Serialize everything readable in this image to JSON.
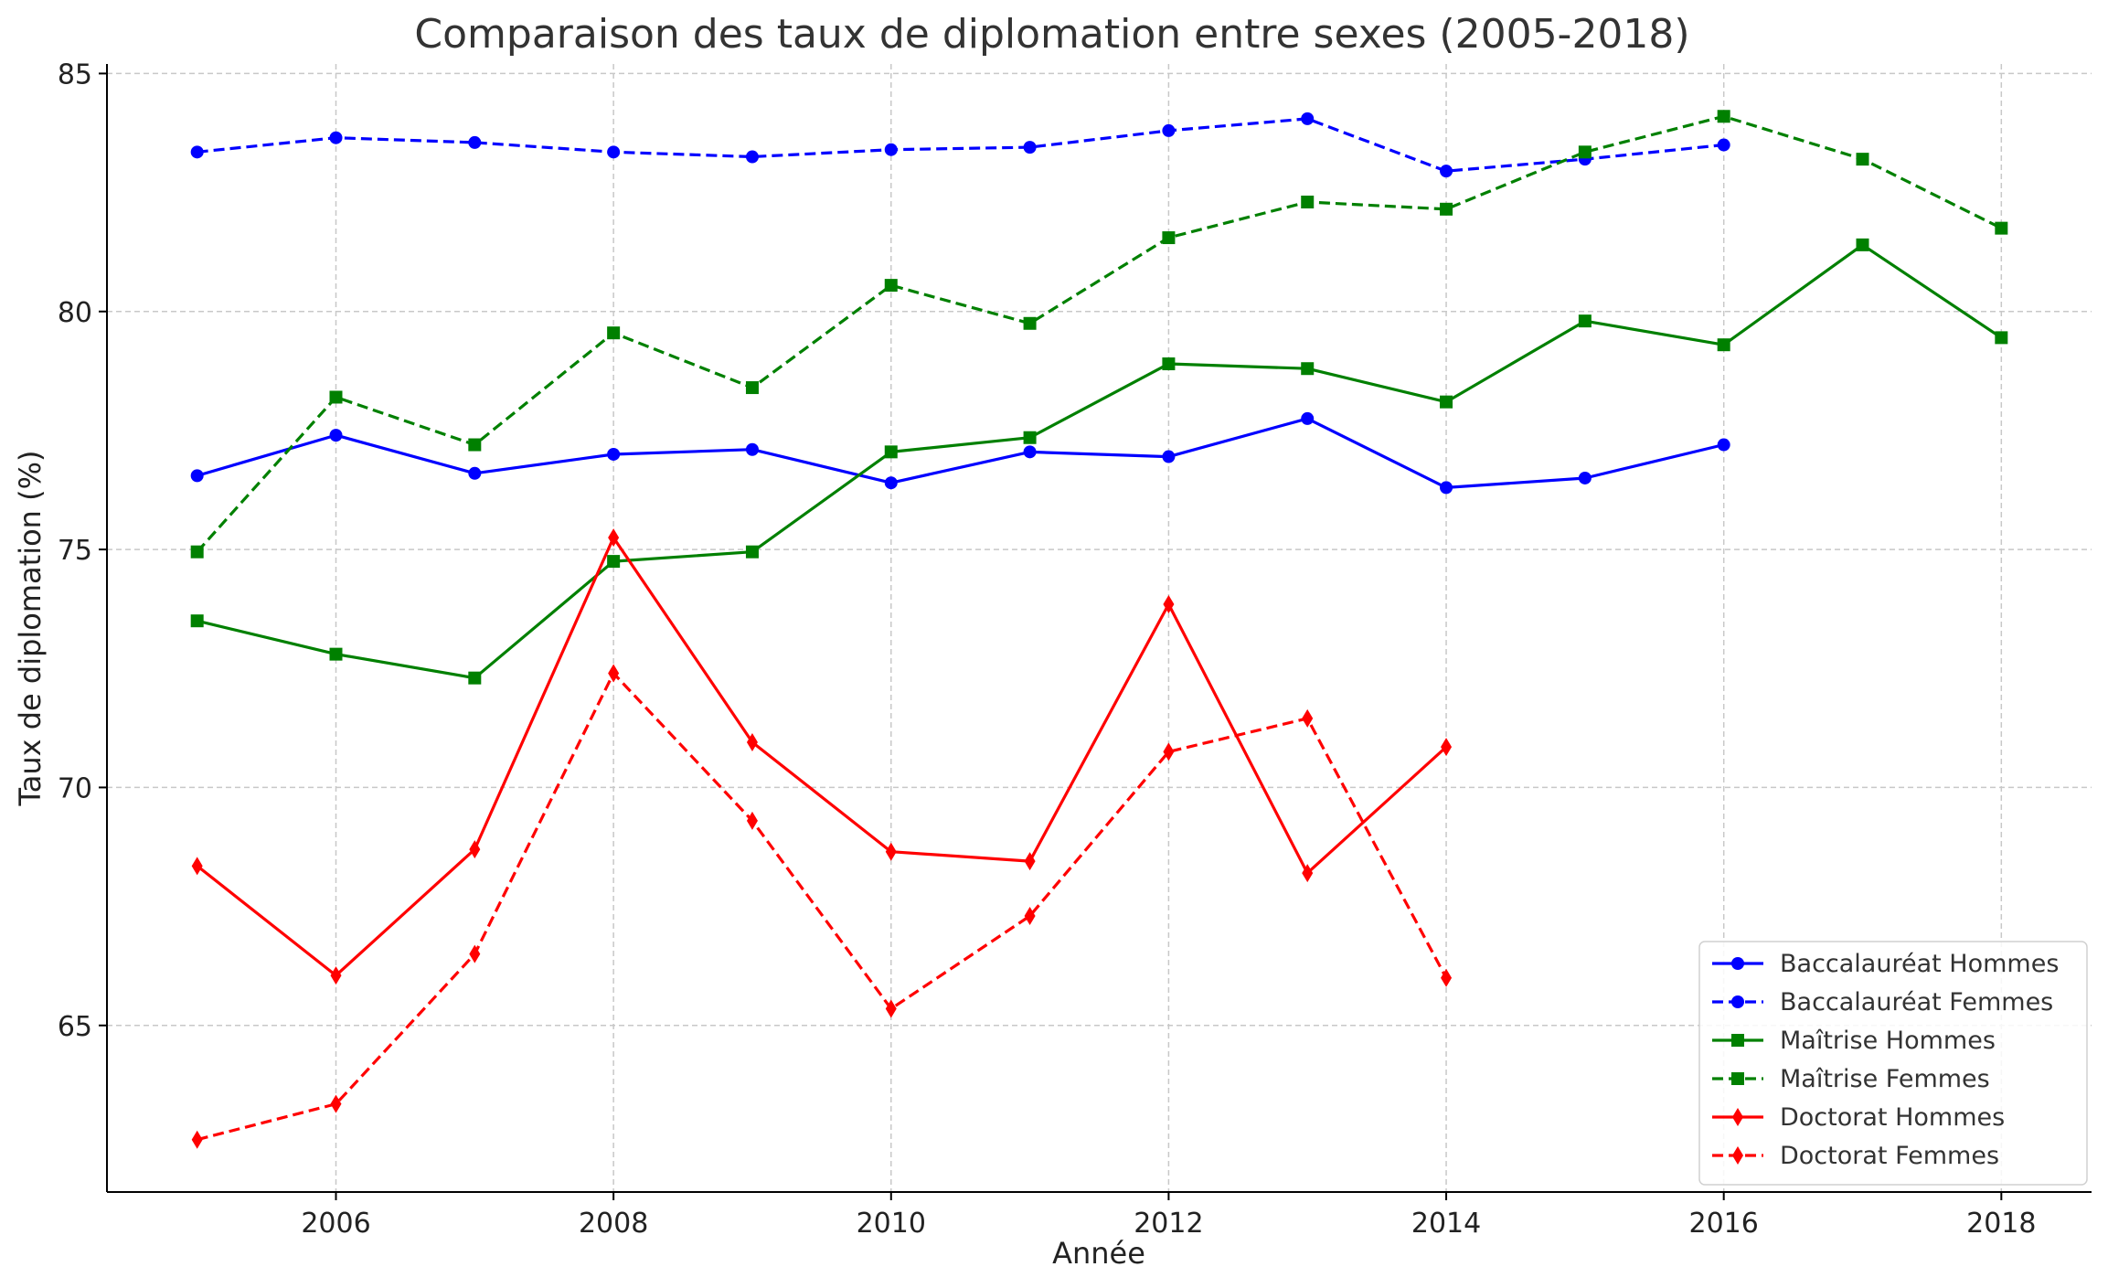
{
  "chart_data": {
    "type": "line",
    "title": "Comparaison des taux de diplomation entre sexes (2005-2018)",
    "xlabel": "Année",
    "ylabel": "Taux de diplomation (%)",
    "xlim": [
      2004.35,
      2018.65
    ],
    "ylim": [
      61.5,
      85.2
    ],
    "x_ticks": [
      2006,
      2008,
      2010,
      2012,
      2014,
      2016,
      2018
    ],
    "y_ticks": [
      65,
      70,
      75,
      80,
      85
    ],
    "grid": true,
    "legend_position": "bottom-right",
    "series": [
      {
        "name": "Baccalauréat Hommes",
        "color": "#0000ff",
        "dashed": false,
        "marker": "circle",
        "x": [
          2005,
          2006,
          2007,
          2008,
          2009,
          2010,
          2011,
          2012,
          2013,
          2014,
          2015,
          2016
        ],
        "values": [
          76.55,
          77.4,
          76.6,
          77.0,
          77.1,
          76.4,
          77.05,
          76.95,
          77.75,
          76.3,
          76.5,
          77.2
        ]
      },
      {
        "name": "Baccalauréat Femmes",
        "color": "#0000ff",
        "dashed": true,
        "marker": "circle",
        "x": [
          2005,
          2006,
          2007,
          2008,
          2009,
          2010,
          2011,
          2012,
          2013,
          2014,
          2015,
          2016
        ],
        "values": [
          83.35,
          83.65,
          83.55,
          83.35,
          83.25,
          83.4,
          83.45,
          83.8,
          84.05,
          82.95,
          83.2,
          83.5
        ]
      },
      {
        "name": "Maîtrise Hommes",
        "color": "#008000",
        "dashed": false,
        "marker": "square",
        "x": [
          2005,
          2006,
          2007,
          2008,
          2009,
          2010,
          2011,
          2012,
          2013,
          2014,
          2015,
          2016,
          2017,
          2018
        ],
        "values": [
          73.5,
          72.8,
          72.3,
          74.75,
          74.95,
          77.05,
          77.35,
          78.9,
          78.8,
          78.1,
          79.8,
          79.3,
          81.4,
          79.45
        ]
      },
      {
        "name": "Maîtrise Femmes",
        "color": "#008000",
        "dashed": true,
        "marker": "square",
        "x": [
          2005,
          2006,
          2007,
          2008,
          2009,
          2010,
          2011,
          2012,
          2013,
          2014,
          2015,
          2016,
          2017,
          2018
        ],
        "values": [
          74.95,
          78.2,
          77.2,
          79.55,
          78.4,
          80.55,
          79.75,
          81.55,
          82.3,
          82.15,
          83.35,
          84.1,
          83.2,
          81.75
        ]
      },
      {
        "name": "Doctorat Hommes",
        "color": "#ff0000",
        "dashed": false,
        "marker": "diamond",
        "x": [
          2005,
          2006,
          2007,
          2008,
          2009,
          2010,
          2011,
          2012,
          2013,
          2014
        ],
        "values": [
          68.35,
          66.05,
          68.7,
          75.25,
          70.95,
          68.65,
          68.45,
          73.85,
          68.2,
          70.85
        ]
      },
      {
        "name": "Doctorat Femmes",
        "color": "#ff0000",
        "dashed": true,
        "marker": "diamond",
        "x": [
          2005,
          2006,
          2007,
          2008,
          2009,
          2010,
          2011,
          2012,
          2013,
          2014
        ],
        "values": [
          62.6,
          63.35,
          66.5,
          72.4,
          69.3,
          65.35,
          67.3,
          70.75,
          71.45,
          66.0
        ]
      }
    ]
  }
}
